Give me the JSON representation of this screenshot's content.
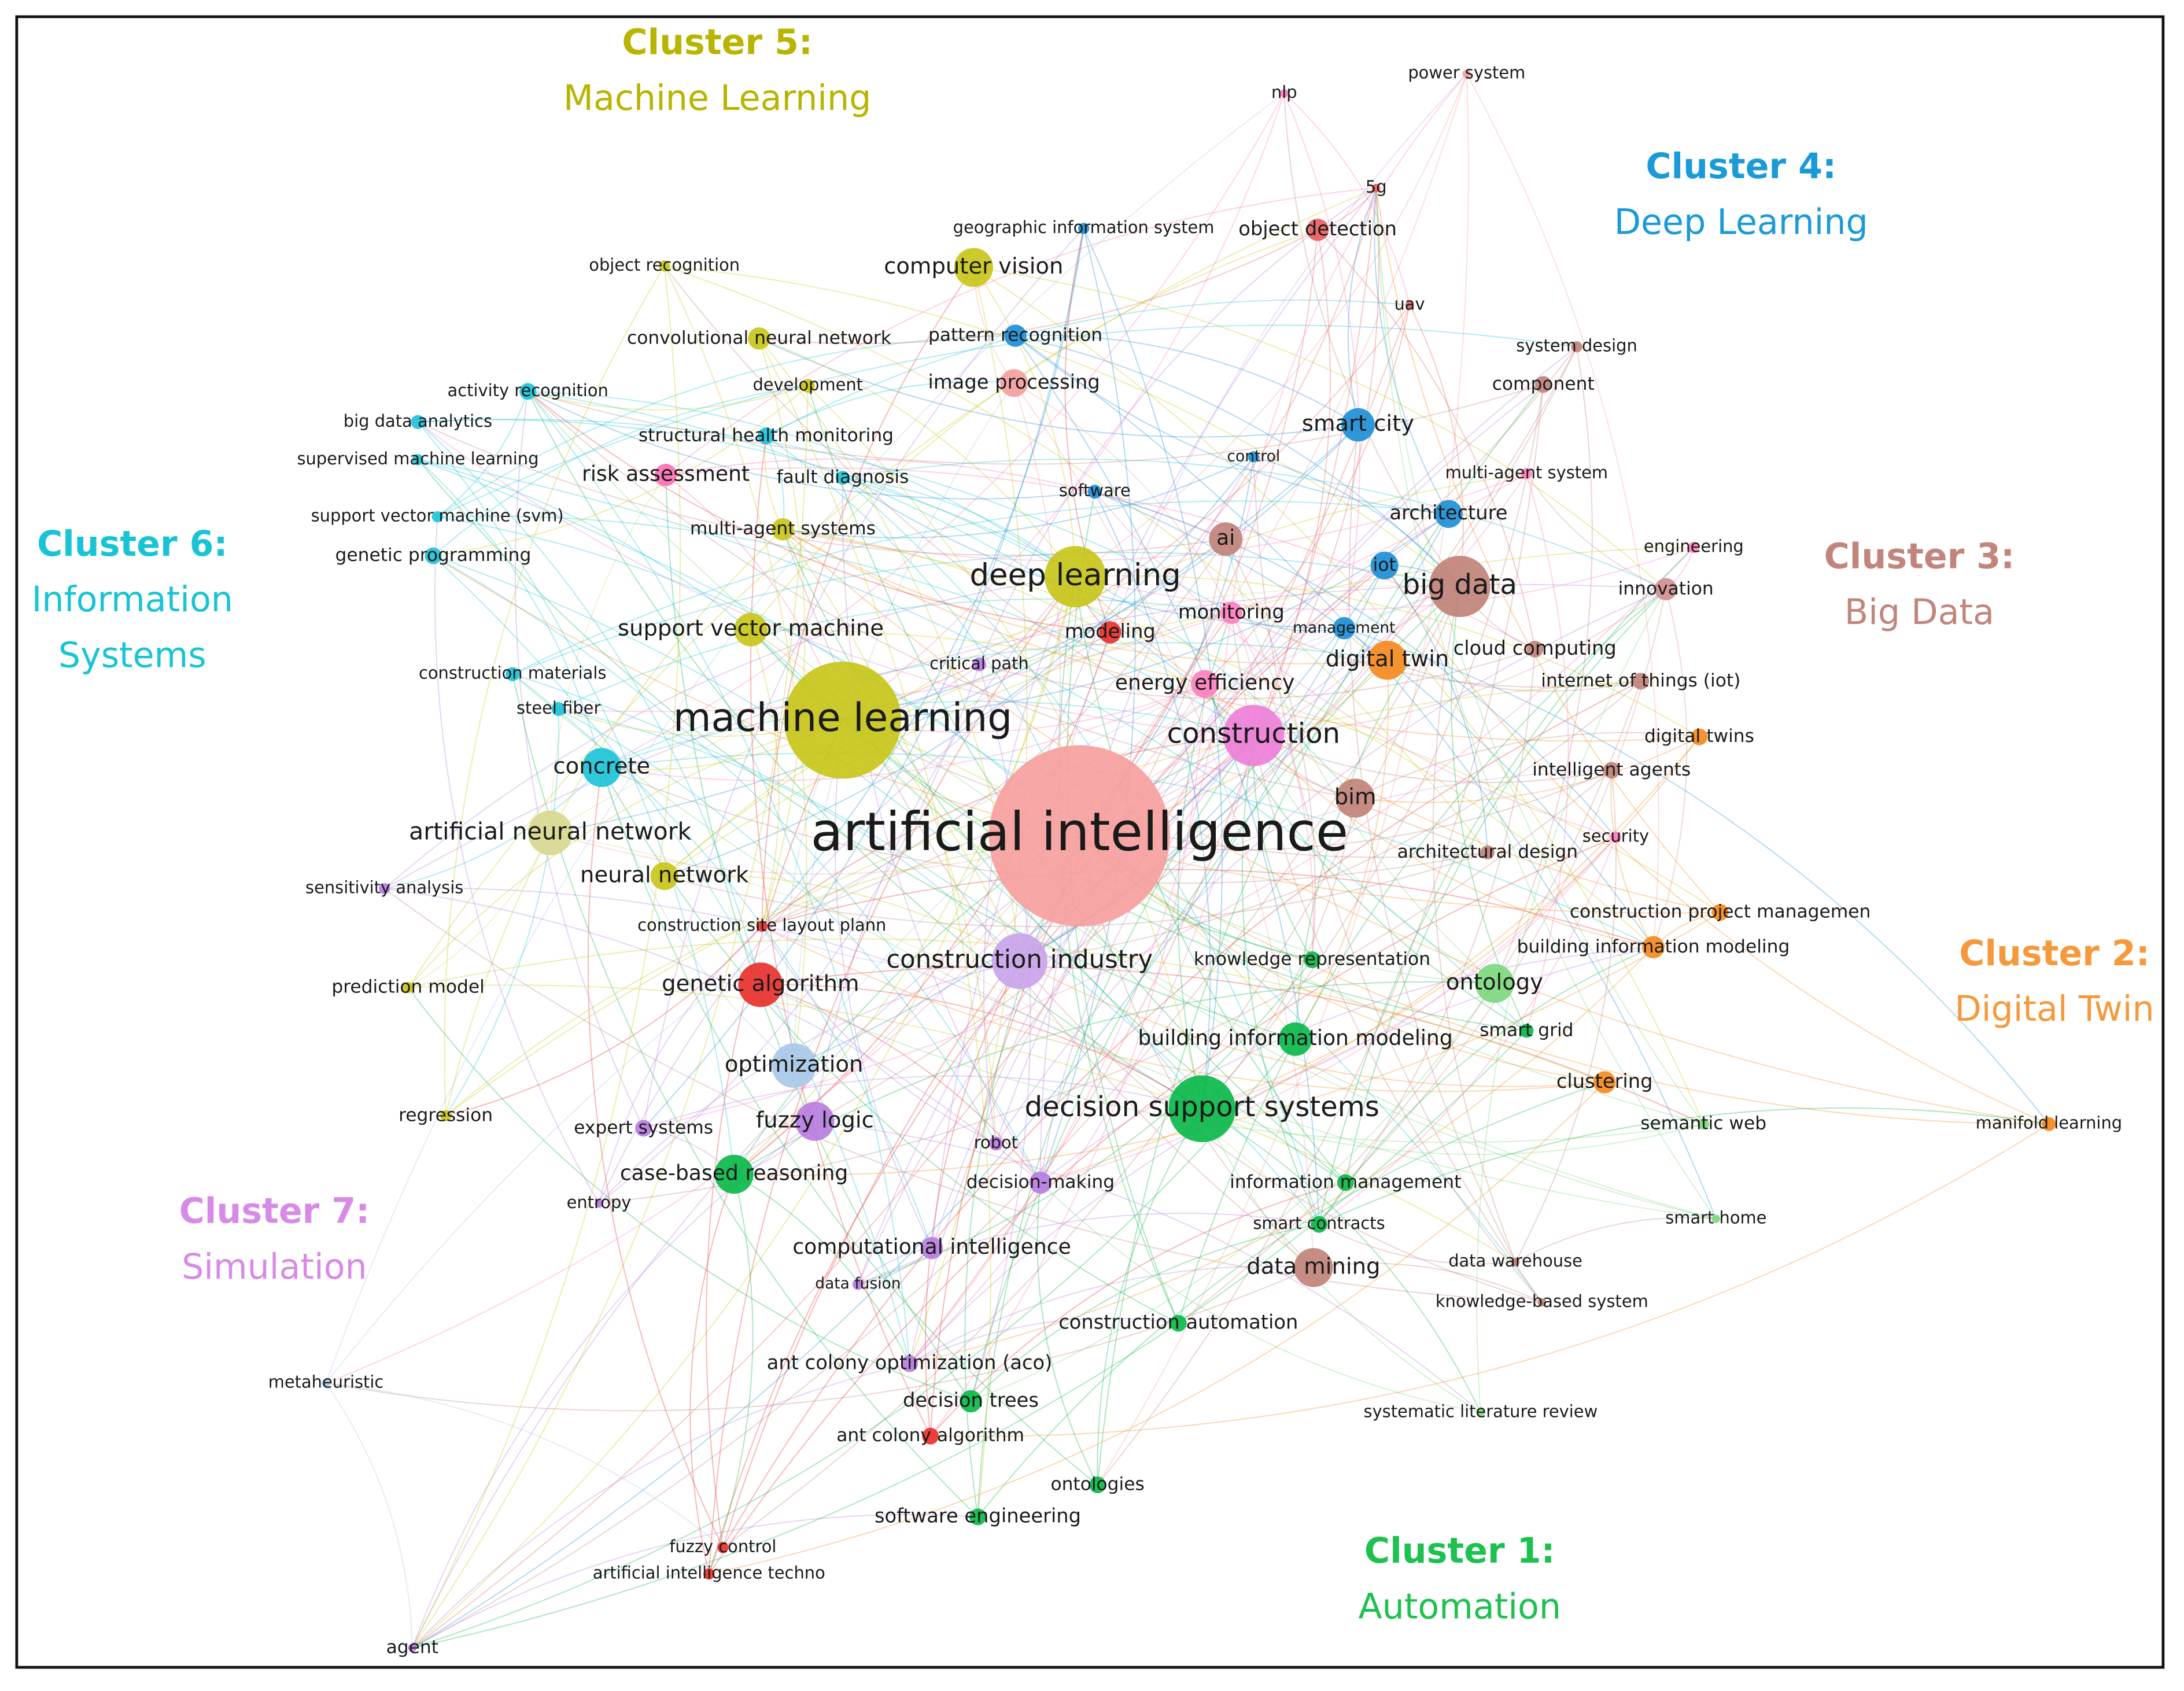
{
  "clusters": [
    {
      "title": "Cluster 1:",
      "name": [
        "Automation"
      ],
      "color": "#1cc14f"
    },
    {
      "title": "Cluster 2:",
      "name": [
        "Digital Twin"
      ],
      "color": "#f59a3c"
    },
    {
      "title": "Cluster 3:",
      "name": [
        "Big Data"
      ],
      "color": "#c1857b"
    },
    {
      "title": "Cluster 4:",
      "name": [
        "Deep Learning"
      ],
      "color": "#1a9bd7"
    },
    {
      "title": "Cluster 5:",
      "name": [
        "Machine Learning"
      ],
      "color": "#b8b400"
    },
    {
      "title": "Cluster 6:",
      "name": [
        "Information",
        "Systems"
      ],
      "color": "#18c4d4"
    },
    {
      "title": "Cluster 7:",
      "name": [
        "Simulation"
      ],
      "color": "#d88ae8"
    }
  ],
  "nodes": [
    {
      "label": "artificial intelligence",
      "color": "#f7a0a0"
    },
    {
      "label": "machine learning",
      "color": "#c8c61a"
    },
    {
      "label": "deep learning",
      "color": "#c8c61a"
    },
    {
      "label": "construction",
      "color": "#ee7fd8"
    },
    {
      "label": "big data",
      "color": "#c0837a"
    },
    {
      "label": "construction industry",
      "color": "#c9a4ea"
    },
    {
      "label": "decision support systems",
      "color": "#0bb84a"
    },
    {
      "label": "digital twin",
      "color": "#f58a1f"
    },
    {
      "label": "smart city",
      "color": "#1e8fd6"
    },
    {
      "label": "computer vision",
      "color": "#c8c61a"
    },
    {
      "label": "concrete",
      "color": "#1ec3d8"
    },
    {
      "label": "artificial neural network",
      "color": "#d8d890"
    },
    {
      "label": "neural network",
      "color": "#c8c61a"
    },
    {
      "label": "genetic algorithm",
      "color": "#e8312f"
    },
    {
      "label": "ontology",
      "color": "#7ed87e"
    },
    {
      "label": "optimization",
      "color": "#a8c8e8"
    },
    {
      "label": "fuzzy logic",
      "color": "#b77de0"
    },
    {
      "label": "case-based reasoning",
      "color": "#0bb84a"
    },
    {
      "label": "building information modeling",
      "color": "#0bb84a"
    },
    {
      "label": "support vector machine",
      "color": "#c8c61a"
    },
    {
      "label": "bim",
      "color": "#c0837a"
    },
    {
      "label": "data mining",
      "color": "#c0837a"
    },
    {
      "label": "computational intelligence",
      "color": "#b77de0"
    },
    {
      "label": "construction automation",
      "color": "#0bb84a"
    },
    {
      "label": "ant colony optimization (aco)",
      "color": "#b77de0"
    },
    {
      "label": "decision trees",
      "color": "#0bb84a"
    },
    {
      "label": "ant colony algorithm",
      "color": "#e8312f"
    },
    {
      "label": "ontologies",
      "color": "#0bb84a"
    },
    {
      "label": "software engineering",
      "color": "#0bb84a"
    },
    {
      "label": "fuzzy control",
      "color": "#e8312f"
    },
    {
      "label": "artificial intelligence techno",
      "color": "#e8312f"
    },
    {
      "label": "agent",
      "color": "#b77de0"
    },
    {
      "label": "metaheuristic",
      "color": "#a8c8e8"
    },
    {
      "label": "entropy",
      "color": "#b77de0"
    },
    {
      "label": "expert systems",
      "color": "#b77de0"
    },
    {
      "label": "regression",
      "color": "#c8c61a"
    },
    {
      "label": "prediction model",
      "color": "#c8c61a"
    },
    {
      "label": "sensitivity analysis",
      "color": "#b77de0"
    },
    {
      "label": "construction site layout plann",
      "color": "#e8312f"
    },
    {
      "label": "construction materials",
      "color": "#1ec3d8"
    },
    {
      "label": "steel fiber",
      "color": "#1ec3d8"
    },
    {
      "label": "genetic programming",
      "color": "#1ec3d8"
    },
    {
      "label": "support vector machine (svm)",
      "color": "#1ec3d8"
    },
    {
      "label": "supervised machine learning",
      "color": "#1ec3d8"
    },
    {
      "label": "big data analytics",
      "color": "#1ec3d8"
    },
    {
      "label": "activity recognition",
      "color": "#1ec3d8"
    },
    {
      "label": "object recognition",
      "color": "#c8c61a"
    },
    {
      "label": "convolutional neural network",
      "color": "#c8c61a"
    },
    {
      "label": "development",
      "color": "#c8c61a"
    },
    {
      "label": "structural health monitoring",
      "color": "#1ec3d8"
    },
    {
      "label": "risk assessment",
      "color": "#ff6fb5"
    },
    {
      "label": "fault diagnosis",
      "color": "#1ec3d8"
    },
    {
      "label": "multi-agent systems",
      "color": "#c8c61a"
    },
    {
      "label": "pattern recognition",
      "color": "#1e8fd6"
    },
    {
      "label": "image processing",
      "color": "#f4a0a0"
    },
    {
      "label": "geographic information system",
      "color": "#1e8fd6"
    },
    {
      "label": "object detection",
      "color": "#e86060"
    },
    {
      "label": "nlp",
      "color": "#ff7fbf"
    },
    {
      "label": "power system",
      "color": "#f4a0a0"
    },
    {
      "label": "5g",
      "color": "#e86060"
    },
    {
      "label": "uav",
      "color": "#e86060"
    },
    {
      "label": "system design",
      "color": "#c0837a"
    },
    {
      "label": "component",
      "color": "#c0837a"
    },
    {
      "label": "multi-agent system",
      "color": "#ff7fbf"
    },
    {
      "label": "architecture",
      "color": "#1e8fd6"
    },
    {
      "label": "engineering",
      "color": "#ff7fbf"
    },
    {
      "label": "innovation",
      "color": "#d09090"
    },
    {
      "label": "cloud computing",
      "color": "#c0837a"
    },
    {
      "label": "internet of things (iot)",
      "color": "#c0837a"
    },
    {
      "label": "digital twins",
      "color": "#f58a1f"
    },
    {
      "label": "intelligent agents",
      "color": "#c0837a"
    },
    {
      "label": "architectural design",
      "color": "#c0837a"
    },
    {
      "label": "construction project managemen",
      "color": "#f58a1f"
    },
    {
      "label": "building information modeling",
      "color": "#f58a1f"
    },
    {
      "label": "smart grid",
      "color": "#0bb84a"
    },
    {
      "label": "clustering",
      "color": "#f58a1f"
    },
    {
      "label": "semantic web",
      "color": "#7ed87e"
    },
    {
      "label": "manifold learning",
      "color": "#f58a1f"
    },
    {
      "label": "smart home",
      "color": "#7ed87e"
    },
    {
      "label": "information management",
      "color": "#0bb84a"
    },
    {
      "label": "smart contracts",
      "color": "#0bb84a"
    },
    {
      "label": "data warehouse",
      "color": "#c0837a"
    },
    {
      "label": "knowledge-based system",
      "color": "#c0837a"
    },
    {
      "label": "systematic literature review",
      "color": "#7ed87e"
    },
    {
      "label": "knowledge representation",
      "color": "#0bb84a"
    },
    {
      "label": "energy efficiency",
      "color": "#ff7fbf"
    },
    {
      "label": "modeling",
      "color": "#e8312f"
    },
    {
      "label": "monitoring",
      "color": "#ff7fbf"
    },
    {
      "label": "iot",
      "color": "#1e8fd6"
    },
    {
      "label": "ai",
      "color": "#c0837a"
    },
    {
      "label": "software",
      "color": "#1e8fd6"
    },
    {
      "label": "control",
      "color": "#1e8fd6"
    },
    {
      "label": "critical path",
      "color": "#b77de0"
    },
    {
      "label": "robot",
      "color": "#b77de0"
    },
    {
      "label": "decision-making",
      "color": "#b77de0"
    },
    {
      "label": "data fusion",
      "color": "#b77de0"
    },
    {
      "label": "management",
      "color": "#1e8fd6"
    },
    {
      "label": "security",
      "color": "#ff7fbf"
    }
  ]
}
